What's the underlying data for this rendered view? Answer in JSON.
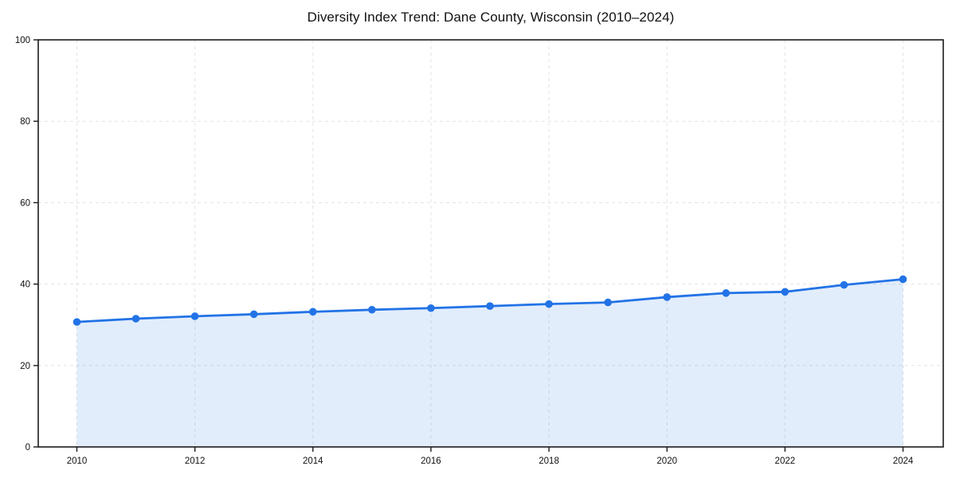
{
  "chart": {
    "title": "Diversity Index Trend: Dane County, Wisconsin (2010–2024)"
  },
  "chart_data": {
    "type": "line",
    "title": "Diversity Index Trend: Dane County, Wisconsin (2010–2024)",
    "x": [
      2010,
      2011,
      2012,
      2013,
      2014,
      2015,
      2016,
      2017,
      2018,
      2019,
      2020,
      2021,
      2022,
      2023,
      2024
    ],
    "series": [
      {
        "name": "Diversity Index",
        "values": [
          30.7,
          31.5,
          32.1,
          32.6,
          33.2,
          33.7,
          34.1,
          34.6,
          35.1,
          35.5,
          36.8,
          37.8,
          38.1,
          39.8,
          41.2
        ]
      }
    ],
    "xlabel": "",
    "ylabel": "",
    "ylim": [
      0,
      100
    ],
    "yticks": [
      0,
      20,
      40,
      60,
      80,
      100
    ],
    "xticks": [
      2010,
      2012,
      2014,
      2016,
      2018,
      2020,
      2022,
      2024
    ],
    "grid": "dashed",
    "legend": "none",
    "area_fill": true,
    "markers": true,
    "marker_radius": 4.8,
    "line_width": 2.8,
    "colors": {
      "line": "#2273e6",
      "marker": "#2273e6",
      "area": "#2273e6",
      "area_opacity": 0.13,
      "grid": "#e3e3e3",
      "axis": "#1a1a1a",
      "text": "#111111",
      "background": "#ffffff"
    }
  }
}
